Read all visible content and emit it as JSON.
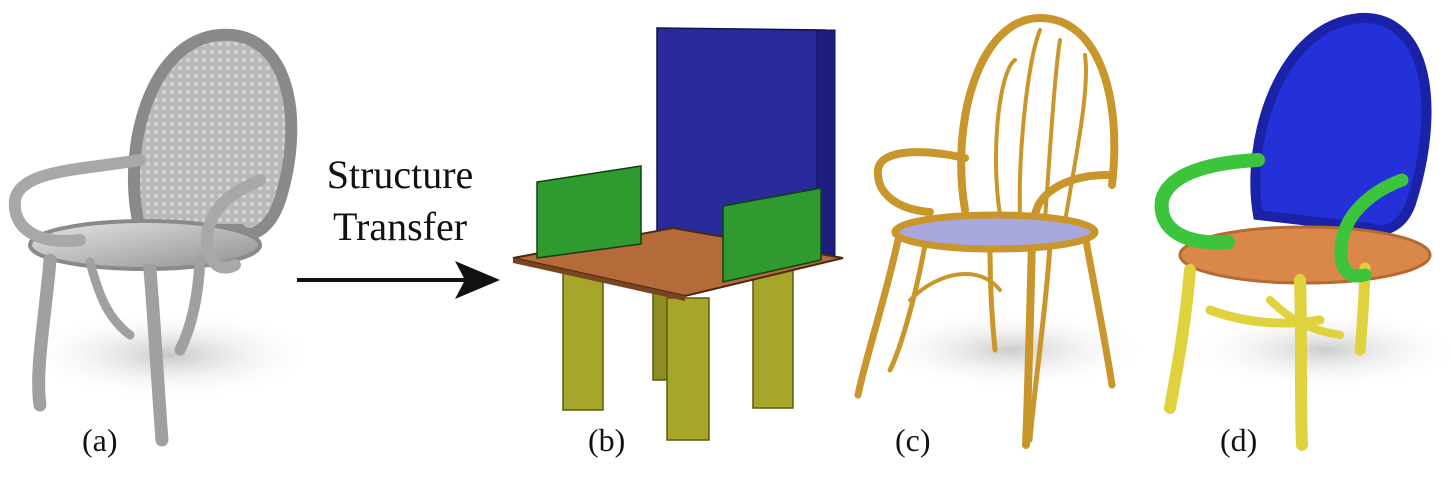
{
  "arrow": {
    "line1": "Structure",
    "line2": "Transfer"
  },
  "captions": {
    "a": "(a)",
    "b": "(b)",
    "c": "(c)",
    "d": "(d)"
  },
  "colors": {
    "mesh_gray": "#bdbdbd",
    "back_blue": "#2a2a9c",
    "arm_green": "#2f9a2f",
    "seat_brown": "#b56a3a",
    "leg_olive": "#a6a72a",
    "tube_gold": "#c9962c",
    "seat_lavender": "#a8a8de",
    "seg_orange": "#d9884a",
    "seg_yellow": "#e0d23c",
    "seg_green": "#3cc43c",
    "seg_blue": "#2430d8"
  },
  "icons": {
    "arrow": "right-arrow-icon"
  }
}
